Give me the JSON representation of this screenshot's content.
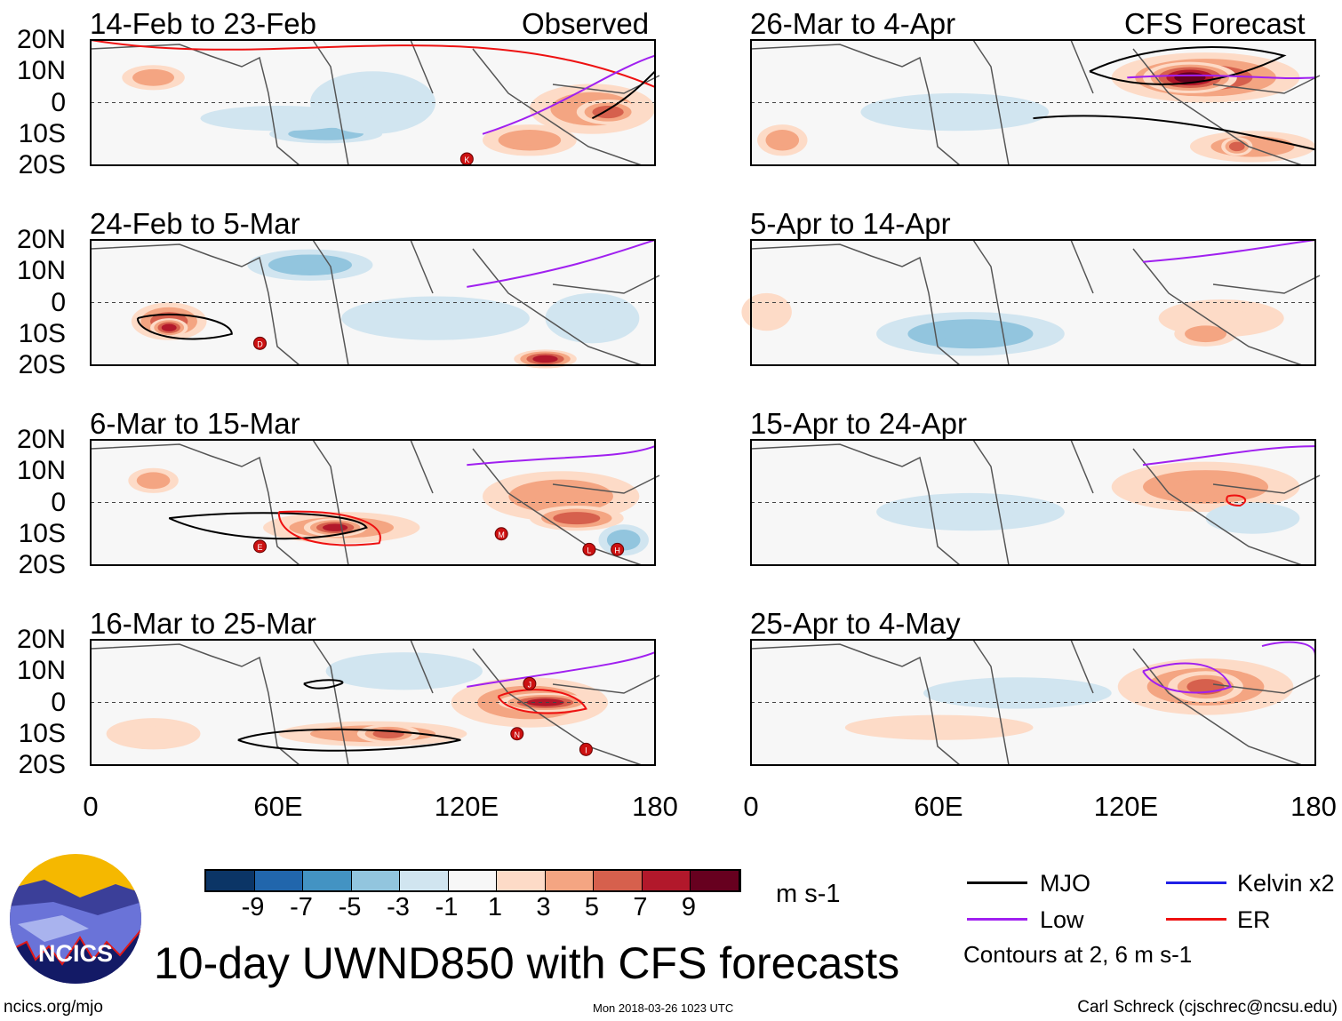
{
  "title": "10-day UWND850 with CFS forecasts",
  "site": "ncics.org/mjo",
  "timestamp": "Mon 2018-03-26 1023 UTC",
  "author": "Carl Schreck (cjschrec@ncsu.edu)",
  "logo_text": "NCICS",
  "chart_data": {
    "type": "heatmap",
    "variable": "850-hPa zonal wind anomaly",
    "units": "m s-1",
    "colorbar": {
      "ticks": [
        "-9",
        "-7",
        "-5",
        "-3",
        "-1",
        "1",
        "3",
        "5",
        "7",
        "9"
      ],
      "colors": [
        "#0b3566",
        "#2166ac",
        "#4393c3",
        "#92c5de",
        "#d1e5f0",
        "#f7f7f7",
        "#fddbc7",
        "#f4a582",
        "#d6604d",
        "#b2182b",
        "#67001f"
      ]
    },
    "lat_ticks": [
      "20N",
      "10N",
      "0",
      "10S",
      "20S"
    ],
    "lon_ticks": [
      "0",
      "60E",
      "120E",
      "180"
    ],
    "lat_range": [
      -20,
      20
    ],
    "lon_range": [
      0,
      180
    ],
    "columns": [
      {
        "label": "Observed",
        "panels": [
          {
            "title": "14-Feb to 23-Feb",
            "storms": [
              "K"
            ]
          },
          {
            "title": "24-Feb to 5-Mar",
            "storms": [
              "D"
            ]
          },
          {
            "title": "6-Mar to 15-Mar",
            "storms": [
              "E",
              "M",
              "L",
              "H"
            ]
          },
          {
            "title": "16-Mar to 25-Mar",
            "storms": [
              "J",
              "N",
              "I"
            ]
          }
        ]
      },
      {
        "label": "CFS Forecast",
        "panels": [
          {
            "title": "26-Mar to 4-Apr"
          },
          {
            "title": "5-Apr to 14-Apr"
          },
          {
            "title": "15-Apr to 24-Apr"
          },
          {
            "title": "25-Apr to 4-May"
          }
        ]
      }
    ],
    "legend": [
      {
        "label": "MJO",
        "color": "#000000"
      },
      {
        "label": "Kelvin x2",
        "color": "#1f1fe6"
      },
      {
        "label": "Low",
        "color": "#a020f0"
      },
      {
        "label": "ER",
        "color": "#ee1111"
      }
    ],
    "contour_note": "Contours at 2, 6 m s-1"
  }
}
